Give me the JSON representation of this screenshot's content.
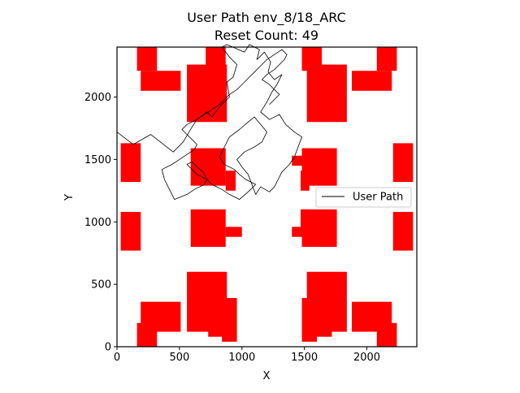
{
  "chart_data": {
    "type": "line",
    "title": "User Path env_8/18_ARC",
    "subtitle": "Reset Count: 49",
    "xlabel": "X",
    "ylabel": "Y",
    "xlim": [
      0,
      2400
    ],
    "ylim": [
      0,
      2400
    ],
    "xticks": [
      0,
      500,
      1000,
      1500,
      2000
    ],
    "yticks": [
      0,
      500,
      1000,
      1500,
      2000
    ],
    "grid": false,
    "legend": {
      "placement": "right",
      "entries": [
        "User Path"
      ]
    },
    "colors": {
      "obstacle": "#ff0000",
      "path": "#000000"
    },
    "obstacles": [
      [
        160,
        2210,
        160,
        190
      ],
      [
        190,
        2050,
        320,
        160
      ],
      [
        560,
        1800,
        320,
        460
      ],
      [
        710,
        2210,
        160,
        190
      ],
      [
        1480,
        2210,
        160,
        190
      ],
      [
        1520,
        1800,
        320,
        460
      ],
      [
        1880,
        2050,
        320,
        160
      ],
      [
        2080,
        2210,
        160,
        190
      ],
      [
        30,
        1320,
        160,
        310
      ],
      [
        590,
        1290,
        280,
        300
      ],
      [
        870,
        1250,
        80,
        160
      ],
      [
        1400,
        1450,
        130,
        80
      ],
      [
        1480,
        1290,
        280,
        300
      ],
      [
        1470,
        1250,
        70,
        160
      ],
      [
        2210,
        1320,
        160,
        310
      ],
      [
        30,
        770,
        160,
        310
      ],
      [
        590,
        800,
        280,
        300
      ],
      [
        870,
        880,
        130,
        80
      ],
      [
        1400,
        880,
        130,
        80
      ],
      [
        1480,
        800,
        280,
        300
      ],
      [
        1470,
        960,
        70,
        140
      ],
      [
        2210,
        770,
        160,
        310
      ],
      [
        190,
        120,
        320,
        240
      ],
      [
        160,
        0,
        160,
        190
      ],
      [
        560,
        120,
        320,
        480
      ],
      [
        730,
        80,
        120,
        200
      ],
      [
        840,
        40,
        120,
        350
      ],
      [
        1480,
        40,
        120,
        350
      ],
      [
        1600,
        80,
        120,
        200
      ],
      [
        1520,
        120,
        320,
        480
      ],
      [
        1880,
        120,
        320,
        240
      ],
      [
        2080,
        0,
        160,
        190
      ]
    ],
    "series": [
      {
        "name": "User Path",
        "x": [
          0,
          130,
          270,
          450,
          530,
          600,
          640,
          720,
          760,
          820,
          900,
          880,
          930,
          960,
          900,
          840,
          880,
          1020,
          1060,
          1140,
          1120,
          1180,
          1230,
          1210,
          1260,
          1320,
          1280,
          1240,
          1200,
          1150,
          1220,
          1300,
          1350,
          1420,
          1480,
          1450,
          1420,
          1380,
          1320,
          1290,
          1260,
          1220,
          1150,
          1110,
          1080,
          1050,
          1000,
          960,
          1020,
          1100,
          1160,
          1200,
          1150,
          1100,
          1050,
          980,
          900,
          860,
          820,
          860,
          940,
          980,
          1030,
          1110,
          1050,
          980,
          900,
          840,
          760,
          720,
          640,
          600,
          560,
          600,
          640,
          690,
          720,
          700,
          620,
          560,
          460,
          420,
          380,
          360,
          440,
          500,
          560,
          620,
          640,
          600,
          560,
          520,
          560,
          640,
          700,
          760,
          820,
          860,
          900,
          960,
          1000,
          1040,
          1080,
          1120,
          1160,
          1200,
          1260,
          1320,
          1360,
          1340,
          1300,
          1260,
          1200,
          1160,
          1220,
          1260,
          1300,
          1260,
          1220
        ],
        "y": [
          1720,
          1620,
          1700,
          1560,
          1640,
          1760,
          1820,
          1880,
          1840,
          1920,
          2000,
          2120,
          2160,
          2260,
          2320,
          2400,
          2420,
          2360,
          2420,
          2380,
          2300,
          2360,
          2280,
          2200,
          2140,
          2180,
          2100,
          2040,
          1960,
          1880,
          1820,
          1860,
          1780,
          1720,
          1680,
          1600,
          1520,
          1460,
          1400,
          1340,
          1280,
          1240,
          1280,
          1220,
          1300,
          1380,
          1440,
          1500,
          1560,
          1600,
          1640,
          1720,
          1780,
          1840,
          1800,
          1740,
          1680,
          1600,
          1520,
          1460,
          1420,
          1380,
          1340,
          1300,
          1240,
          1180,
          1220,
          1260,
          1300,
          1340,
          1380,
          1420,
          1460,
          1480,
          1440,
          1400,
          1340,
          1300,
          1260,
          1220,
          1180,
          1260,
          1340,
          1420,
          1460,
          1500,
          1540,
          1580,
          1620,
          1660,
          1700,
          1740,
          1780,
          1820,
          1860,
          1900,
          1940,
          1980,
          2020,
          2060,
          2100,
          2140,
          2180,
          2220,
          2260,
          2300,
          2340,
          2380,
          2340,
          2300,
          2260,
          2220,
          2180,
          2140,
          2100,
          2060,
          2020,
          1980,
          1940
        ]
      }
    ]
  }
}
